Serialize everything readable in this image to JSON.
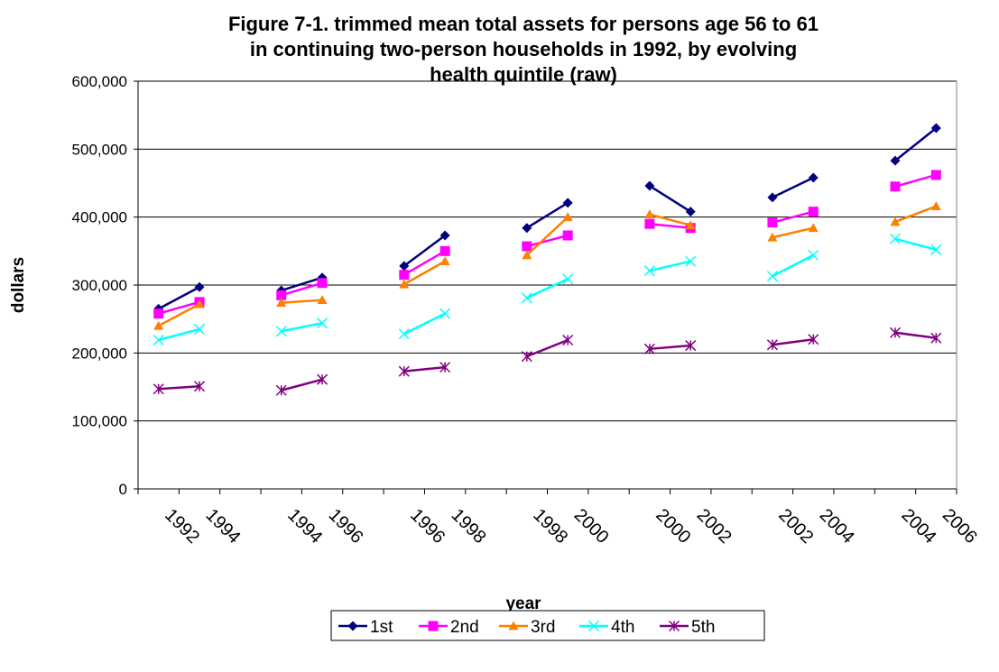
{
  "chart_data": {
    "type": "line",
    "title": [
      "Figure 7-1.  trimmed mean total assets for persons age 56 to 61",
      "in continuing two-person households in 1992, by evolving",
      "health quintile (raw)"
    ],
    "x_label": "year",
    "y_label": "dollars",
    "categories": [
      "1992",
      "1994",
      null,
      "1994",
      "1996",
      null,
      "1996",
      "1998",
      null,
      "1998",
      "2000",
      null,
      "2000",
      "2002",
      null,
      "2002",
      "2004",
      null,
      "2004",
      "2006"
    ],
    "ylim": [
      0,
      600000
    ],
    "yticks": [
      0,
      {
        "value": 100000,
        "label": "100,000"
      },
      {
        "value": 200000,
        "label": "200,000"
      },
      {
        "value": 300000,
        "label": "300,000"
      },
      {
        "value": 400000,
        "label": "400,000"
      },
      {
        "value": 500000,
        "label": "500,000"
      },
      {
        "value": 600000,
        "label": "600,000"
      }
    ],
    "grid": true,
    "legend": "bottom",
    "series": [
      {
        "name": "1st",
        "color": "#000080",
        "marker": "diamond",
        "values": [
          265000,
          297000,
          null,
          292000,
          311000,
          null,
          328000,
          373000,
          null,
          384000,
          421000,
          null,
          446000,
          408000,
          null,
          429000,
          458000,
          null,
          483000,
          531000
        ]
      },
      {
        "name": "2nd",
        "color": "#FF00FF",
        "marker": "square",
        "values": [
          258000,
          275000,
          null,
          285000,
          303000,
          null,
          315000,
          350000,
          null,
          357000,
          373000,
          null,
          390000,
          384000,
          null,
          392000,
          408000,
          null,
          445000,
          462000
        ]
      },
      {
        "name": "3rd",
        "color": "#FF7F00",
        "marker": "triangle",
        "values": [
          240000,
          272000,
          null,
          274000,
          278000,
          null,
          301000,
          335000,
          null,
          344000,
          400000,
          null,
          404000,
          388000,
          null,
          370000,
          384000,
          null,
          393000,
          416000
        ]
      },
      {
        "name": "4th",
        "color": "#00FFFF",
        "marker": "x",
        "values": [
          219000,
          235000,
          null,
          232000,
          244000,
          null,
          228000,
          258000,
          null,
          281000,
          309000,
          null,
          321000,
          335000,
          null,
          313000,
          344000,
          null,
          368000,
          352000
        ]
      },
      {
        "name": "5th",
        "color": "#800080",
        "marker": "star",
        "values": [
          147000,
          151000,
          null,
          145000,
          161000,
          null,
          173000,
          179000,
          null,
          195000,
          219000,
          null,
          206000,
          211000,
          null,
          212000,
          220000,
          null,
          230000,
          222000
        ]
      }
    ]
  }
}
